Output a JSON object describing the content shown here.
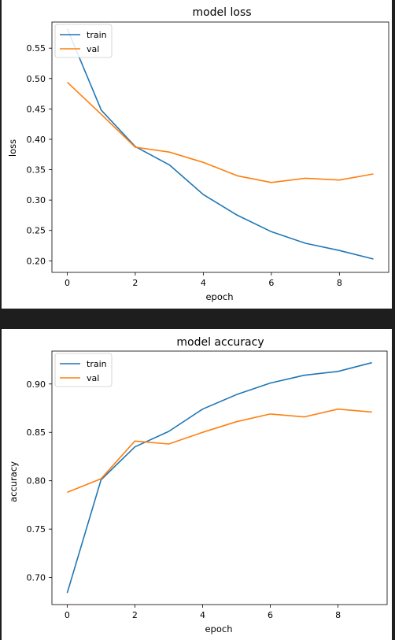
{
  "chart_data": [
    {
      "type": "line",
      "title": "model loss",
      "xlabel": "epoch",
      "ylabel": "loss",
      "xlim": [
        -0.45,
        9.45
      ],
      "ylim": [
        0.181,
        0.593
      ],
      "xticks": [
        0,
        2,
        4,
        6,
        8
      ],
      "yticks": [
        0.2,
        0.25,
        0.3,
        0.35,
        0.4,
        0.45,
        0.5,
        0.55
      ],
      "xtick_labels": [
        "0",
        "2",
        "4",
        "6",
        "8"
      ],
      "ytick_labels": [
        "0.20",
        "0.25",
        "0.30",
        "0.35",
        "0.40",
        "0.45",
        "0.50",
        "0.55"
      ],
      "legend": "top-left",
      "grid": false,
      "x": [
        0,
        1,
        2,
        3,
        4,
        5,
        6,
        7,
        8,
        9
      ],
      "series": [
        {
          "name": "train",
          "color": "#1f77b4",
          "values": [
            0.582,
            0.448,
            0.388,
            0.358,
            0.309,
            0.275,
            0.248,
            0.229,
            0.217,
            0.203
          ]
        },
        {
          "name": "val",
          "color": "#ff7f0e",
          "values": [
            0.494,
            0.441,
            0.387,
            0.379,
            0.362,
            0.34,
            0.329,
            0.336,
            0.333,
            0.343
          ]
        }
      ]
    },
    {
      "type": "line",
      "title": "model accuracy",
      "xlabel": "epoch",
      "ylabel": "accuracy",
      "xlim": [
        -0.45,
        9.45
      ],
      "ylim": [
        0.672,
        0.934
      ],
      "xticks": [
        0,
        2,
        4,
        6,
        8
      ],
      "yticks": [
        0.7,
        0.75,
        0.8,
        0.85,
        0.9
      ],
      "xtick_labels": [
        "0",
        "2",
        "4",
        "6",
        "8"
      ],
      "ytick_labels": [
        "0.70",
        "0.75",
        "0.80",
        "0.85",
        "0.90"
      ],
      "legend": "top-left",
      "grid": false,
      "x": [
        0,
        1,
        2,
        3,
        4,
        5,
        6,
        7,
        8,
        9
      ],
      "series": [
        {
          "name": "train",
          "color": "#1f77b4",
          "values": [
            0.684,
            0.801,
            0.835,
            0.851,
            0.874,
            0.889,
            0.901,
            0.909,
            0.913,
            0.922
          ]
        },
        {
          "name": "val",
          "color": "#ff7f0e",
          "values": [
            0.788,
            0.802,
            0.841,
            0.838,
            0.85,
            0.861,
            0.869,
            0.866,
            0.874,
            0.871
          ]
        }
      ]
    }
  ]
}
